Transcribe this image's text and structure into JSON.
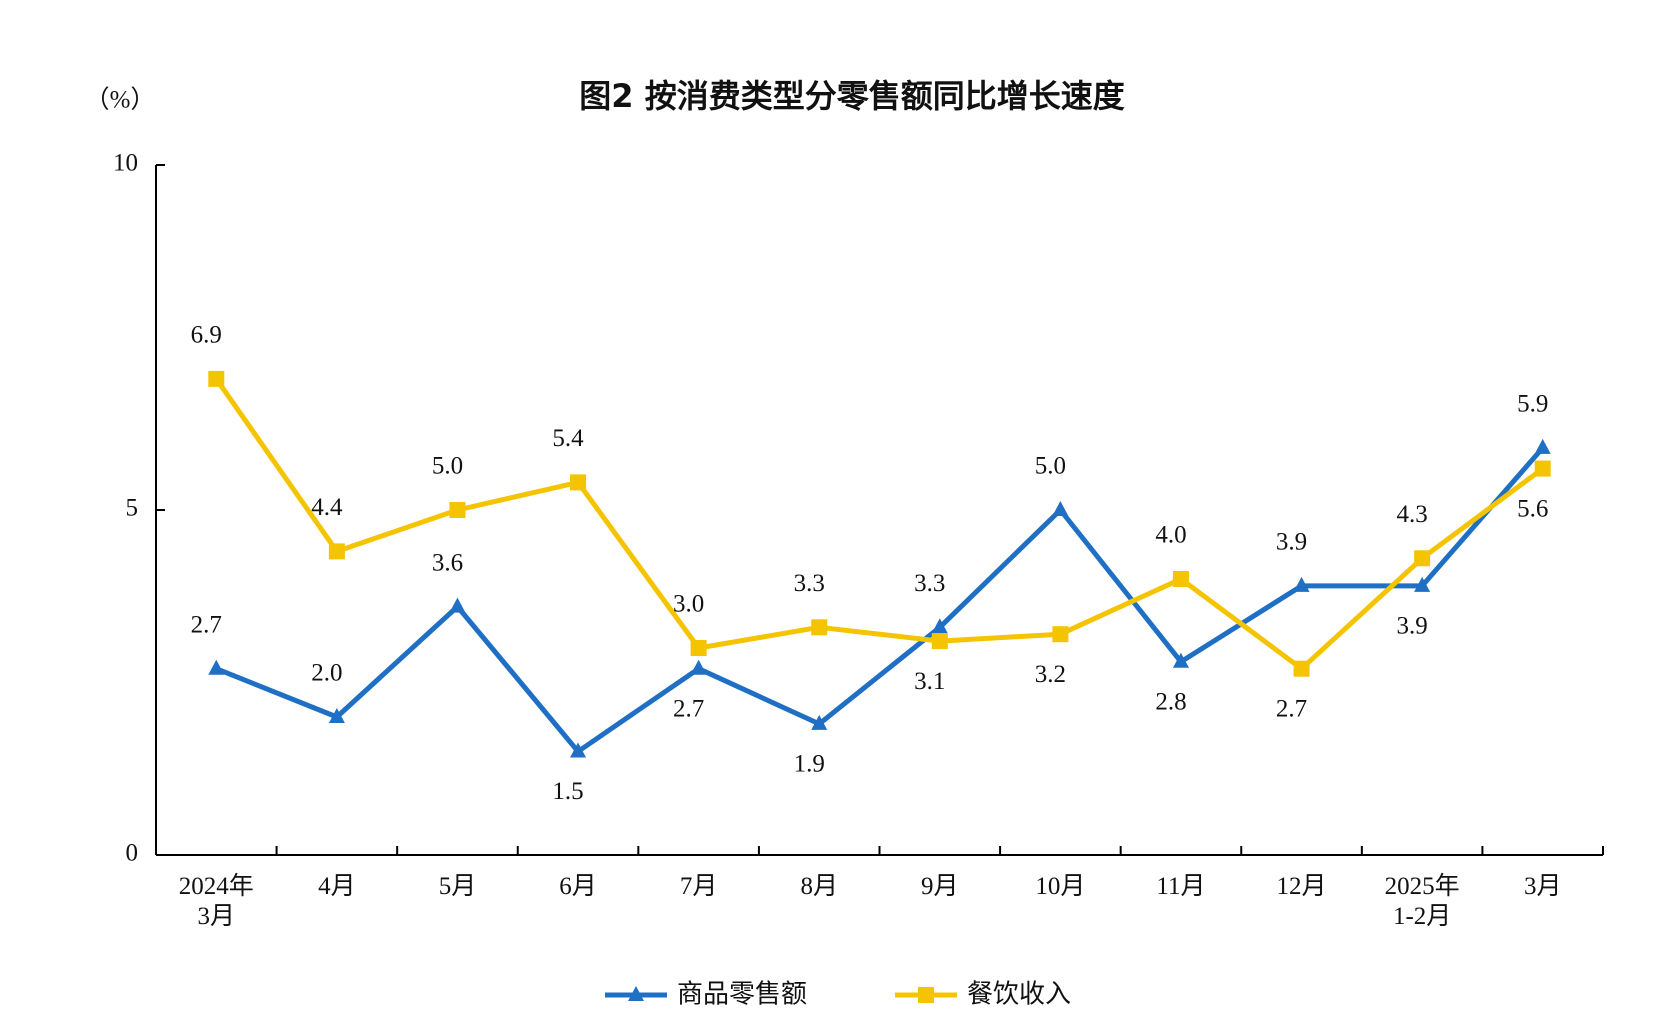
{
  "chart_data": {
    "type": "line",
    "title": "图2  按消费类型分零售额同比增长速度",
    "y_label": "（%）",
    "categories": [
      "2024年\n3月",
      "4月",
      "5月",
      "6月",
      "7月",
      "8月",
      "9月",
      "10月",
      "11月",
      "12月",
      "2025年\n1-2月",
      "3月"
    ],
    "series": [
      {
        "name": "商品零售额",
        "color": "#1f6fc5",
        "marker": "triangle",
        "values": [
          2.7,
          2.0,
          3.6,
          1.5,
          2.7,
          1.9,
          3.3,
          5.0,
          2.8,
          3.9,
          3.9,
          5.9
        ],
        "value_labels": [
          "2.7",
          "2.0",
          "3.6",
          "1.5",
          "2.7",
          "1.9",
          "3.3",
          "5.0",
          "2.8",
          "3.9",
          "3.9",
          "5.9"
        ]
      },
      {
        "name": "餐饮收入",
        "color": "#f5c400",
        "marker": "square",
        "values": [
          6.9,
          4.4,
          5.0,
          5.4,
          3.0,
          3.3,
          3.1,
          3.2,
          4.0,
          2.7,
          4.3,
          5.6
        ],
        "value_labels": [
          "6.9",
          "4.4",
          "5.0",
          "5.4",
          "3.0",
          "3.3",
          "3.1",
          "3.2",
          "4.0",
          "2.7",
          "4.3",
          "5.6"
        ]
      }
    ],
    "ylim": [
      0,
      10
    ],
    "yticks": [
      0,
      5,
      10
    ],
    "grid": false
  }
}
